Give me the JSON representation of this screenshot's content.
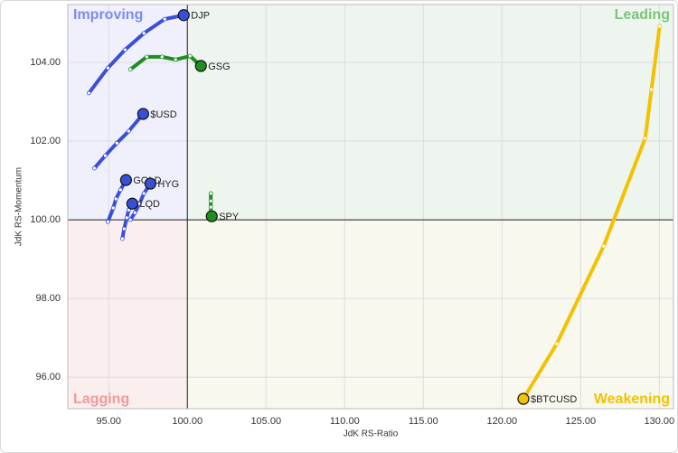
{
  "chart_data": {
    "type": "rrg",
    "xlabel": "JdK RS-Ratio",
    "ylabel": "JdK RS-Momentum",
    "xlim": [
      92.4,
      130.9
    ],
    "ylim": [
      95.2,
      105.47
    ],
    "xticks": [
      {
        "value": 95,
        "label": "95.00"
      },
      {
        "value": 100,
        "label": "100.00"
      },
      {
        "value": 105,
        "label": "105.00"
      },
      {
        "value": 110,
        "label": "110.00"
      },
      {
        "value": 115,
        "label": "115.00"
      },
      {
        "value": 120,
        "label": "120.00"
      },
      {
        "value": 125,
        "label": "125.00"
      },
      {
        "value": 130,
        "label": "130.00"
      }
    ],
    "yticks": [
      {
        "value": 96,
        "label": "96.00"
      },
      {
        "value": 98,
        "label": "98.00"
      },
      {
        "value": 100,
        "label": "100.00"
      },
      {
        "value": 102,
        "label": "102.00"
      },
      {
        "value": 104,
        "label": "104.00"
      }
    ],
    "grid": true,
    "center": {
      "x": 100,
      "y": 100
    },
    "quadrants": [
      {
        "name": "Improving",
        "corner": "top-left",
        "color": "#7b8cf0",
        "background": "#eff0fb"
      },
      {
        "name": "Leading",
        "corner": "top-right",
        "color": "#7cc47c",
        "background": "#eef5ee"
      },
      {
        "name": "Lagging",
        "corner": "bottom-left",
        "color": "#f29a9a",
        "background": "#fbeeee"
      },
      {
        "name": "Weakening",
        "corner": "bottom-right",
        "color": "#f2c200",
        "background": "#f9f8ef"
      }
    ],
    "series": [
      {
        "name": "DJP",
        "color": "#3a4fd8",
        "x": [
          93.74,
          94.95,
          96.04,
          97.24,
          98.56,
          99.77
        ],
        "y": [
          103.22,
          103.86,
          104.32,
          104.74,
          105.1,
          105.2
        ]
      },
      {
        "name": "GSG",
        "color": "#1e8f1e",
        "x": [
          96.38,
          97.42,
          98.39,
          99.25,
          100.17,
          100.86
        ],
        "y": [
          103.82,
          104.14,
          104.14,
          104.07,
          104.16,
          103.91
        ]
      },
      {
        "name": "$USD",
        "color": "#3a4fd8",
        "x": [
          94.09,
          94.78,
          95.52,
          96.27,
          97.19
        ],
        "y": [
          101.31,
          101.63,
          101.95,
          102.25,
          102.69
        ]
      },
      {
        "name": "GOLD",
        "color": "#3a4fd8",
        "x": [
          94.95,
          95.29,
          95.46,
          95.75,
          96.1
        ],
        "y": [
          99.95,
          100.3,
          100.53,
          100.76,
          101.01
        ]
      },
      {
        "name": "HYG",
        "color": "#3a4fd8",
        "x": [
          96.38,
          96.67,
          96.96,
          97.24,
          97.65
        ],
        "y": [
          100.0,
          100.18,
          100.41,
          100.67,
          100.92
        ]
      },
      {
        "name": "LQD",
        "color": "#3a4fd8",
        "x": [
          95.87,
          95.98,
          96.15,
          96.27,
          96.5
        ],
        "y": [
          99.52,
          99.77,
          100.05,
          100.25,
          100.41
        ]
      },
      {
        "name": "SPY",
        "color": "#1e8f1e",
        "x": [
          101.49,
          101.49,
          101.49,
          101.49,
          101.55
        ],
        "y": [
          100.67,
          100.48,
          100.32,
          100.21,
          100.09
        ]
      },
      {
        "name": "$BTCUSD",
        "color": "#f2c200",
        "x": [
          130.02,
          129.5,
          129.1,
          126.46,
          123.48,
          121.36
        ],
        "y": [
          104.92,
          103.31,
          102.07,
          99.33,
          96.85,
          95.45
        ]
      }
    ]
  }
}
